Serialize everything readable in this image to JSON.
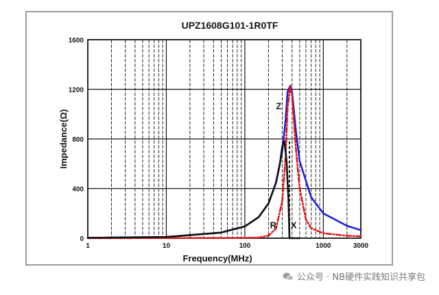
{
  "chart_data": {
    "type": "line",
    "title": "UPZ1608G101-1R0TF",
    "xlabel": "Frequency(MHz)",
    "ylabel": "Impedance(Ω)",
    "x_scale": "log",
    "xlim": [
      1,
      3000
    ],
    "ylim": [
      0,
      1600
    ],
    "x_ticks": [
      1,
      10,
      100,
      1000,
      3000
    ],
    "x_tick_labels": [
      "1",
      "10",
      "100",
      "1000",
      "3000"
    ],
    "y_ticks": [
      0,
      400,
      800,
      1200,
      1600
    ],
    "y_tick_labels": [
      "0",
      "400",
      "800",
      "1200",
      "1600"
    ],
    "grid": true,
    "series": [
      {
        "name": "Z",
        "color": "#1f1fd6",
        "style": "solid",
        "x": [
          1,
          10,
          50,
          100,
          150,
          200,
          250,
          300,
          330,
          350,
          380,
          400,
          450,
          500,
          700,
          1000,
          2000,
          3000
        ],
        "y": [
          3,
          10,
          45,
          95,
          170,
          280,
          450,
          700,
          950,
          1180,
          1230,
          1180,
          850,
          620,
          330,
          200,
          100,
          65
        ]
      },
      {
        "name": "R",
        "color": "#e01414",
        "style": "dashdot",
        "x": [
          1,
          100,
          150,
          200,
          250,
          300,
          330,
          350,
          380,
          400,
          450,
          500,
          600,
          700,
          1000,
          2000,
          3000
        ],
        "y": [
          0,
          2,
          5,
          20,
          80,
          300,
          650,
          1050,
          1230,
          1150,
          700,
          400,
          150,
          80,
          40,
          20,
          15
        ]
      },
      {
        "name": "X",
        "color": "#111111",
        "style": "solid",
        "x": [
          1,
          10,
          50,
          100,
          150,
          200,
          250,
          280,
          300,
          320,
          340,
          360,
          370,
          400,
          450,
          500
        ],
        "y": [
          3,
          10,
          45,
          95,
          170,
          280,
          450,
          600,
          740,
          780,
          620,
          300,
          0,
          0,
          0,
          0
        ]
      }
    ],
    "annotations": [
      {
        "text": "Z",
        "x": 270,
        "y": 1040
      },
      {
        "text": "R",
        "x": 230,
        "y": 80
      },
      {
        "text": "X",
        "x": 420,
        "y": 80
      }
    ]
  },
  "watermark": {
    "text": "公众号 · NB硬件实践知识共享包",
    "icon": "wechat-icon"
  }
}
